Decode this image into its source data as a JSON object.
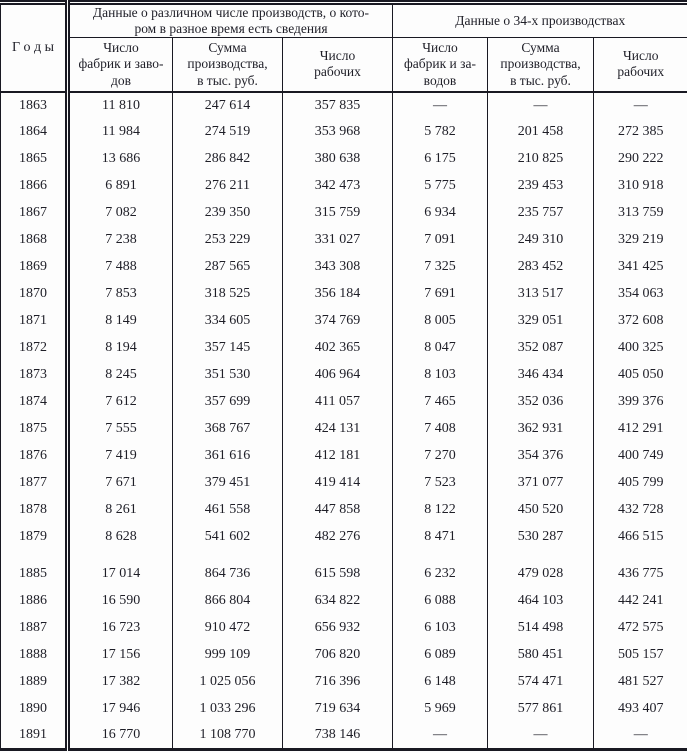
{
  "colors": {
    "ink": "#1e1e27",
    "line": "#191922",
    "paper": "#fdfdfd"
  },
  "table": {
    "year_header": "Г о д ы",
    "group1_header": "Данные о различном числе производств, о кото-\nром в разное время есть сведения",
    "group2_header": "Данные о 34-х производствах",
    "col_headers": [
      "Число\nфабрик и заво-\nдов",
      "Сумма\nпроизводства,\nв тыс. руб.",
      "Число\nрабочих",
      "Число\nфабрик и за-\nводов",
      "Сумма\nпроизводства,\nв тыс. руб.",
      "Число\nрабочих"
    ],
    "rows": [
      {
        "year": "1863",
        "values": [
          "11 810",
          "247 614",
          "357 835",
          "—",
          "—",
          "—"
        ]
      },
      {
        "year": "1864",
        "values": [
          "11 984",
          "274 519",
          "353 968",
          "5 782",
          "201 458",
          "272 385"
        ]
      },
      {
        "year": "1865",
        "values": [
          "13 686",
          "286 842",
          "380 638",
          "6 175",
          "210 825",
          "290 222"
        ]
      },
      {
        "year": "1866",
        "values": [
          "6 891",
          "276 211",
          "342 473",
          "5 775",
          "239 453",
          "310 918"
        ]
      },
      {
        "year": "1867",
        "values": [
          "7 082",
          "239 350",
          "315 759",
          "6 934",
          "235 757",
          "313 759"
        ]
      },
      {
        "year": "1868",
        "values": [
          "7 238",
          "253 229",
          "331 027",
          "7 091",
          "249 310",
          "329 219"
        ]
      },
      {
        "year": "1869",
        "values": [
          "7 488",
          "287 565",
          "343 308",
          "7 325",
          "283 452",
          "341 425"
        ]
      },
      {
        "year": "1870",
        "values": [
          "7 853",
          "318 525",
          "356 184",
          "7 691",
          "313 517",
          "354 063"
        ]
      },
      {
        "year": "1871",
        "values": [
          "8 149",
          "334 605",
          "374 769",
          "8 005",
          "329 051",
          "372 608"
        ]
      },
      {
        "year": "1872",
        "values": [
          "8 194",
          "357 145",
          "402 365",
          "8 047",
          "352 087",
          "400 325"
        ]
      },
      {
        "year": "1873",
        "values": [
          "8 245",
          "351 530",
          "406 964",
          "8 103",
          "346 434",
          "405 050"
        ]
      },
      {
        "year": "1874",
        "values": [
          "7 612",
          "357 699",
          "411 057",
          "7 465",
          "352 036",
          "399 376"
        ]
      },
      {
        "year": "1875",
        "values": [
          "7 555",
          "368 767",
          "424 131",
          "7 408",
          "362 931",
          "412 291"
        ]
      },
      {
        "year": "1876",
        "values": [
          "7 419",
          "361 616",
          "412 181",
          "7 270",
          "354 376",
          "400 749"
        ]
      },
      {
        "year": "1877",
        "values": [
          "7 671",
          "379 451",
          "419 414",
          "7 523",
          "371 077",
          "405 799"
        ]
      },
      {
        "year": "1878",
        "values": [
          "8 261",
          "461 558",
          "447 858",
          "8 122",
          "450 520",
          "432 728"
        ]
      },
      {
        "year": "1879",
        "values": [
          "8 628",
          "541 602",
          "482 276",
          "8 471",
          "530 287",
          "466 515"
        ]
      },
      {
        "spacer": true
      },
      {
        "year": "1885",
        "values": [
          "17 014",
          "864 736",
          "615 598",
          "6 232",
          "479 028",
          "436 775"
        ]
      },
      {
        "year": "1886",
        "values": [
          "16 590",
          "866 804",
          "634 822",
          "6 088",
          "464 103",
          "442 241"
        ]
      },
      {
        "year": "1887",
        "values": [
          "16 723",
          "910 472",
          "656 932",
          "6 103",
          "514 498",
          "472 575"
        ]
      },
      {
        "year": "1888",
        "values": [
          "17 156",
          "999 109",
          "706 820",
          "6 089",
          "580 451",
          "505 157"
        ]
      },
      {
        "year": "1889",
        "values": [
          "17 382",
          "1 025 056",
          "716 396",
          "6 148",
          "574 471",
          "481 527"
        ]
      },
      {
        "year": "1890",
        "values": [
          "17 946",
          "1 033 296",
          "719 634",
          "5 969",
          "577 861",
          "493 407"
        ]
      },
      {
        "year": "1891",
        "values": [
          "16 770",
          "1 108 770",
          "738 146",
          "—",
          "—",
          "—"
        ]
      }
    ]
  }
}
